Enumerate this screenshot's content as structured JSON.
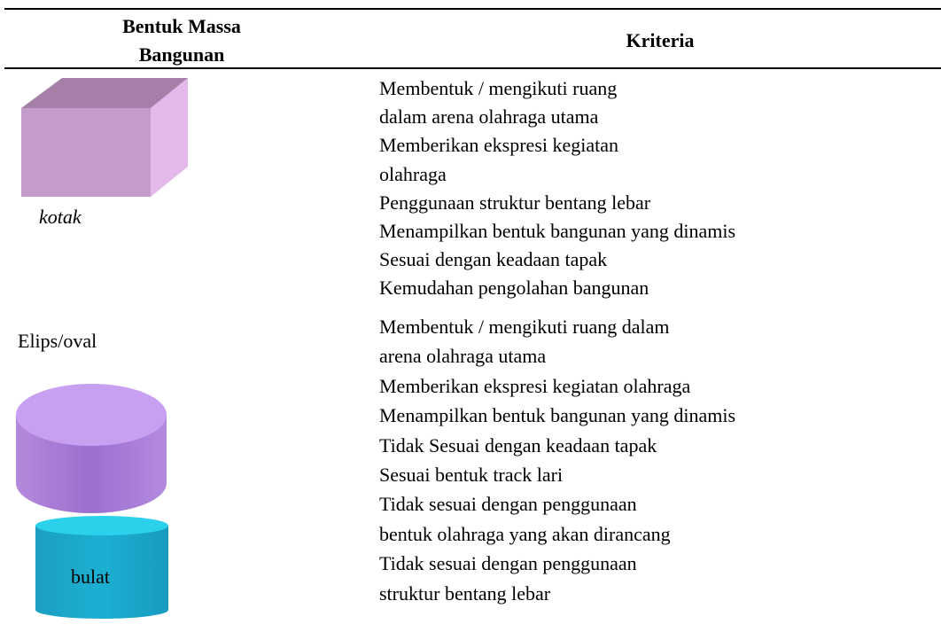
{
  "table": {
    "header": {
      "shape_col": [
        "Bentuk Massa",
        "Bangunan"
      ],
      "criteria_col": "Kriteria"
    },
    "rows": [
      {
        "shape_labels": [
          "kotak"
        ],
        "criteria": [
          "Membentuk / mengikuti ruang",
          "dalam arena olahraga utama",
          "Memberikan ekspresi kegiatan",
          "olahraga",
          "Penggunaan struktur bentang lebar",
          "Menampilkan bentuk bangunan yang dinamis",
          "Sesuai dengan keadaan tapak",
          "Kemudahan pengolahan bangunan"
        ]
      },
      {
        "shape_labels": [
          "Elips/oval",
          "bulat"
        ],
        "criteria": [
          "Membentuk / mengikuti ruang dalam",
          "arena olahraga utama",
          "Memberikan ekspresi kegiatan olahraga",
          "Menampilkan bentuk bangunan yang dinamis",
          "Tidak Sesuai dengan keadaan tapak",
          "Sesuai bentuk track lari",
          "Tidak sesuai dengan penggunaan",
          "bentuk olahraga yang akan dirancang",
          "Tidak sesuai dengan penggunaan",
          "struktur bentang lebar"
        ]
      }
    ]
  }
}
